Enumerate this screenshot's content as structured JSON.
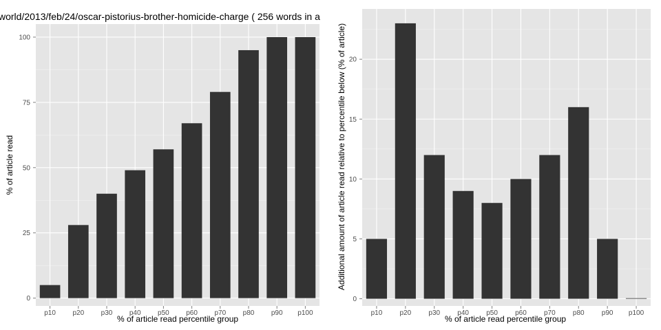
{
  "chart_data": [
    {
      "type": "bar",
      "title": "world/2013/feb/24/oscar-pistorius-brother-homicide-charge ( 256 words in a",
      "xlabel": "% of article read percentile group",
      "ylabel": "% of article read",
      "categories": [
        "p10",
        "p20",
        "p30",
        "p40",
        "p50",
        "p60",
        "p70",
        "p80",
        "p90",
        "p100"
      ],
      "values": [
        5,
        28,
        40,
        49,
        57,
        67,
        79,
        95,
        100,
        100
      ],
      "ylim": [
        -3,
        105
      ],
      "yticks": [
        0,
        25,
        50,
        75,
        100
      ],
      "grid": true,
      "bar_color": "#333333",
      "panel_color": "#e5e5e5",
      "grid_color": "#ffffff"
    },
    {
      "type": "bar",
      "title": "",
      "xlabel": "% of article read percentile group",
      "ylabel": "Additional amount of article read relative to percentile below (% of article)",
      "categories": [
        "p10",
        "p20",
        "p30",
        "p40",
        "p50",
        "p60",
        "p70",
        "p80",
        "p90",
        "p100"
      ],
      "values": [
        5,
        23,
        12,
        9,
        8,
        10,
        12,
        16,
        5,
        0
      ],
      "ylim": [
        -0.6,
        24.2
      ],
      "yticks": [
        0,
        5,
        10,
        15,
        20
      ],
      "grid": true,
      "bar_color": "#333333",
      "panel_color": "#e5e5e5",
      "grid_color": "#ffffff"
    }
  ]
}
